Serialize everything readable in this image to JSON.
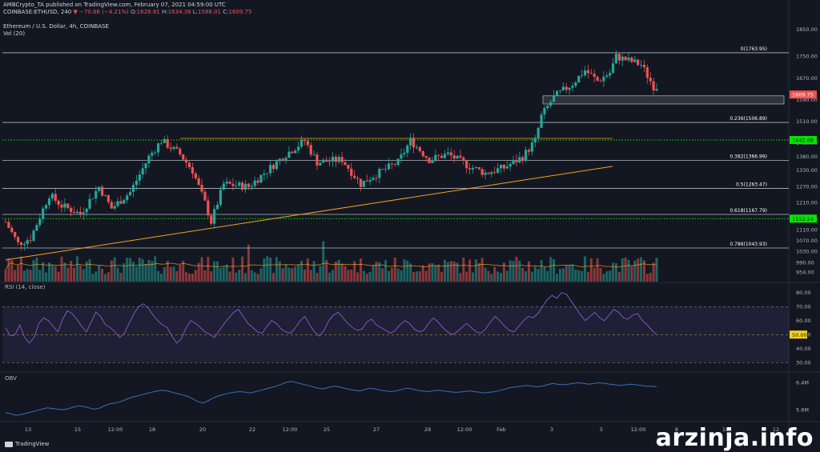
{
  "header": {
    "line1": "AMBCrypto_TA published on TradingView.com, February 07, 2021 04:59:00 UTC",
    "symbol": "COINBASE:ETHUSD, 240",
    "change": "▼ −70.66 (−4.21%)",
    "open_label": "O:",
    "open": "1628.81",
    "high_label": "H:",
    "high": "1634.38",
    "low_label": "L:",
    "low": "1588.01",
    "close_label": "C:",
    "close": "1609.75",
    "title": "Ethereum / U.S. Dollar, 4h, COINBASE",
    "vol_label": "Vol (20)"
  },
  "panes": {
    "rsi_label": "RSI (14, close)",
    "obv_label": "OBV"
  },
  "footer": {
    "brand": "TradingView",
    "watermark": "arzinja.info"
  },
  "colors": {
    "bg": "#131722",
    "up": "#26a69a",
    "down": "#ef5350",
    "rsi": "#7e57c2",
    "obv": "#3d6fb3",
    "fib": "#d1d4dc",
    "support": "#00e600",
    "trendline": "#f7a21b"
  },
  "chart_data": {
    "type": "candlestick",
    "price_axis": {
      "min": 920,
      "max": 1870,
      "ticks": [
        "1850.00",
        "1750.00",
        "1670.00",
        "1590.00",
        "1510.00",
        "1430.00",
        "1380.00",
        "1330.00",
        "1270.00",
        "1210.00",
        "1150.00",
        "1110.00",
        "1070.00",
        "1030.00",
        "990.00",
        "954.00"
      ]
    },
    "x_ticks": [
      "13",
      "15",
      "12:00",
      "18",
      "20",
      "22",
      "12:00",
      "25",
      "27",
      "29",
      "12:00",
      "Feb",
      "3",
      "5",
      "12:00",
      "8",
      "10",
      "12"
    ],
    "fib_levels": [
      {
        "label": "0(1763.95)",
        "value": 1763.95
      },
      {
        "label": "0.236(1506.89)",
        "value": 1506.89
      },
      {
        "label": "0.382(1366.99)",
        "value": 1366.99
      },
      {
        "label": "0.5(1263.47)",
        "value": 1263.47
      },
      {
        "label": "0.618(1167.79)",
        "value": 1167.79
      },
      {
        "label": "0.786(1043.93)",
        "value": 1043.93
      }
    ],
    "price_badges": [
      {
        "label": "1609.75",
        "value": 1609.75,
        "bg": "#ef5350",
        "fg": "#ffffff"
      },
      {
        "label": "1442.09",
        "value": 1442.09,
        "bg": "#00e600",
        "fg": "#131722"
      },
      {
        "label": "1152.24",
        "value": 1152.24,
        "bg": "#00e600",
        "fg": "#131722"
      }
    ],
    "support_lines": [
      1442.09,
      1152.24
    ],
    "resistance_zone": [
      1575,
      1605
    ],
    "trendline": [
      [
        0,
        1000
      ],
      [
        157,
        1345
      ]
    ],
    "rsi": {
      "ticks": [
        "80.00",
        "70.00",
        "60.00",
        "50.00",
        "40.00",
        "30.00"
      ],
      "levels": [
        70,
        50,
        30
      ],
      "badge": "50.00",
      "values": [
        55,
        49,
        50,
        57,
        48,
        44,
        48,
        58,
        62,
        60,
        56,
        52,
        61,
        67,
        65,
        61,
        56,
        52,
        59,
        66,
        63,
        57,
        55,
        52,
        48,
        51,
        58,
        65,
        70,
        72,
        69,
        64,
        60,
        57,
        55,
        49,
        44,
        47,
        55,
        60,
        58,
        55,
        52,
        50,
        48,
        53,
        58,
        62,
        66,
        68,
        63,
        58,
        55,
        52,
        51,
        56,
        60,
        58,
        54,
        52,
        51,
        55,
        60,
        63,
        57,
        52,
        49,
        53,
        60,
        64,
        66,
        62,
        58,
        55,
        53,
        54,
        59,
        61,
        57,
        55,
        53,
        51,
        53,
        57,
        60,
        58,
        54,
        52,
        53,
        58,
        62,
        59,
        55,
        52,
        50,
        52,
        55,
        58,
        55,
        52,
        51,
        54,
        59,
        63,
        60,
        56,
        53,
        52,
        56,
        60,
        63,
        62,
        65,
        70,
        75,
        78,
        76,
        80,
        79,
        74,
        69,
        64,
        60,
        63,
        66,
        62,
        60,
        64,
        68,
        66,
        62,
        61,
        64,
        65,
        60,
        57,
        53,
        50
      ]
    },
    "obv": {
      "ticks": [
        "6.4M",
        "5.6M"
      ],
      "values": [
        5.52,
        5.48,
        5.44,
        5.46,
        5.5,
        5.54,
        5.58,
        5.62,
        5.66,
        5.64,
        5.62,
        5.6,
        5.63,
        5.68,
        5.72,
        5.7,
        5.66,
        5.62,
        5.65,
        5.72,
        5.78,
        5.8,
        5.84,
        5.9,
        5.96,
        6.0,
        6.04,
        6.08,
        6.12,
        6.15,
        6.18,
        6.16,
        6.12,
        6.08,
        6.04,
        6.0,
        5.92,
        5.84,
        5.8,
        5.88,
        5.96,
        6.02,
        6.06,
        6.1,
        6.12,
        6.14,
        6.12,
        6.1,
        6.14,
        6.18,
        6.22,
        6.26,
        6.3,
        6.36,
        6.42,
        6.44,
        6.4,
        6.36,
        6.32,
        6.28,
        6.24,
        6.22,
        6.26,
        6.3,
        6.28,
        6.24,
        6.2,
        6.18,
        6.16,
        6.2,
        6.24,
        6.22,
        6.18,
        6.16,
        6.14,
        6.16,
        6.2,
        6.24,
        6.22,
        6.18,
        6.16,
        6.14,
        6.16,
        6.18,
        6.16,
        6.14,
        6.12,
        6.12,
        6.14,
        6.16,
        6.14,
        6.12,
        6.1,
        6.12,
        6.14,
        6.18,
        6.22,
        6.26,
        6.28,
        6.3,
        6.32,
        6.3,
        6.28,
        6.3,
        6.34,
        6.38,
        6.36,
        6.34,
        6.36,
        6.38,
        6.4,
        6.38,
        6.36,
        6.38,
        6.4,
        6.38,
        6.36,
        6.34,
        6.32,
        6.34,
        6.36,
        6.34,
        6.32,
        6.3,
        6.3,
        6.28
      ]
    },
    "candles": []
  }
}
